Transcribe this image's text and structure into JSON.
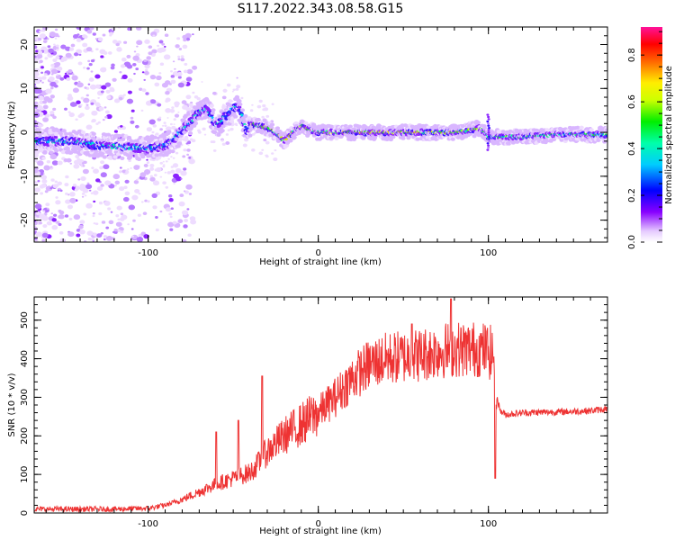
{
  "figure_title": "S117.2022.343.08.58.G15",
  "chart_data": [
    {
      "type": "heatmap",
      "xlabel": "Height of straight line (km)",
      "ylabel": "Frequency (Hz)",
      "xlim": [
        -167,
        170
      ],
      "ylim": [
        -25,
        24
      ],
      "xticks": [
        -100,
        0,
        100
      ],
      "yticks": [
        -20,
        -10,
        0,
        10,
        20
      ],
      "grid": false,
      "colorbar": {
        "label": "Normalized spectral amplitude",
        "range": [
          0,
          0.92
        ],
        "ticks": [
          0.0,
          0.2,
          0.4,
          0.6,
          0.8
        ]
      },
      "ridge": {
        "x": [
          -165,
          -150,
          -140,
          -130,
          -120,
          -110,
          -100,
          -95,
          -90,
          -85,
          -80,
          -75,
          -70,
          -65,
          -60,
          -55,
          -50,
          -47,
          -45,
          -42,
          -40,
          -35,
          -30,
          -25,
          -20,
          -15,
          -10,
          -5,
          0,
          10,
          20,
          30,
          40,
          50,
          60,
          70,
          80,
          90,
          95,
          98,
          100,
          105,
          120,
          140,
          160,
          170
        ],
        "y": [
          -2,
          -2,
          -2.3,
          -3,
          -3.2,
          -3.4,
          -3.6,
          -3.4,
          -3,
          -1.5,
          0.5,
          2.5,
          4.5,
          5.2,
          1.5,
          3.5,
          5.5,
          5.8,
          4,
          0,
          2,
          1.5,
          1,
          0,
          -2,
          0,
          1.5,
          0.5,
          0,
          0,
          0,
          0,
          0,
          0,
          0,
          0,
          0,
          0.5,
          1,
          0,
          -1,
          -1,
          -1,
          -0.5,
          -0.5,
          -0.5
        ]
      }
    },
    {
      "type": "line",
      "xlabel": "Height of straight line (km)",
      "ylabel": "SNR (10 * v/v)",
      "xlim": [
        -167,
        170
      ],
      "ylim": [
        0,
        560
      ],
      "xticks": [
        -100,
        0,
        100
      ],
      "yticks": [
        0,
        100,
        200,
        300,
        400,
        500
      ],
      "grid": false,
      "color": "#ee3333",
      "trend": {
        "x": [
          -167,
          -140,
          -120,
          -100,
          -90,
          -80,
          -70,
          -60,
          -50,
          -40,
          -35,
          -30,
          -20,
          -10,
          0,
          10,
          20,
          30,
          40,
          50,
          60,
          70,
          80,
          90,
          95,
          100,
          103,
          105,
          107,
          110,
          120,
          140,
          160,
          170
        ],
        "y": [
          10,
          10,
          10,
          12,
          20,
          35,
          55,
          75,
          90,
          105,
          130,
          160,
          200,
          230,
          260,
          300,
          350,
          385,
          400,
          405,
          410,
          420,
          425,
          425,
          425,
          420,
          410,
          300,
          265,
          255,
          260,
          262,
          265,
          270
        ]
      },
      "spikes": [
        {
          "x": -60,
          "y": 210
        },
        {
          "x": -47,
          "y": 240
        },
        {
          "x": -33,
          "y": 355
        },
        {
          "x": 55,
          "y": 490
        },
        {
          "x": 78,
          "y": 555
        },
        {
          "x": 104,
          "y": 90
        }
      ]
    }
  ]
}
